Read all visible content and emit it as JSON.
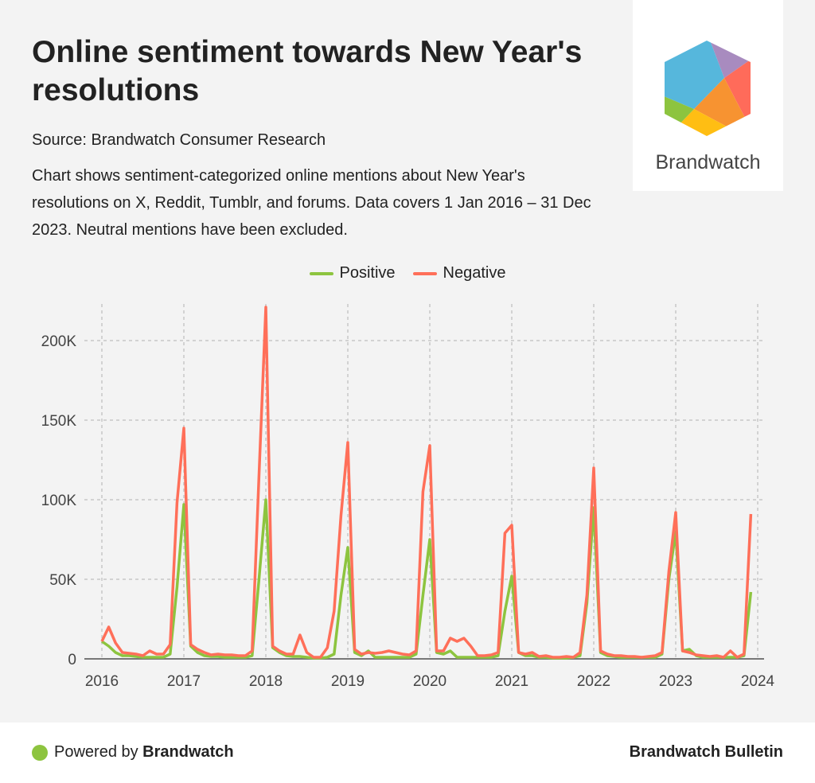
{
  "header": {
    "title": "Online sentiment towards New Year's resolutions",
    "source": "Source: Brandwatch Consumer Research",
    "description": "Chart shows sentiment-categorized online mentions about New Year's resolutions on X, Reddit, Tumblr, and forums. Data covers 1 Jan 2016 – 31 Dec 2023. Neutral mentions have been excluded."
  },
  "logo": {
    "text": "Brandwatch"
  },
  "footer": {
    "powered_prefix": "Powered by ",
    "powered_brand": "Brandwatch",
    "right": "Brandwatch Bulletin"
  },
  "colors": {
    "positive": "#8dc43f",
    "negative": "#ff6f59"
  },
  "chart_data": {
    "type": "line",
    "title": "Online sentiment towards New Year's resolutions",
    "xlabel": "",
    "ylabel": "",
    "x_start": "2016-01",
    "x_interval": "month",
    "xlim": [
      2016,
      2024
    ],
    "ylim": [
      0,
      220000
    ],
    "grid": true,
    "legend_position": "top-center",
    "x_ticks": [
      "2016",
      "2017",
      "2018",
      "2019",
      "2020",
      "2021",
      "2022",
      "2023",
      "2024"
    ],
    "y_ticks": [
      {
        "value": 0,
        "label": "0"
      },
      {
        "value": 50000,
        "label": "50K"
      },
      {
        "value": 100000,
        "label": "100K"
      },
      {
        "value": 150000,
        "label": "150K"
      },
      {
        "value": 200000,
        "label": "200K"
      }
    ],
    "series": [
      {
        "name": "Positive",
        "color": "#8dc43f",
        "values": [
          11000,
          8000,
          4000,
          2000,
          2000,
          1500,
          1000,
          1000,
          1000,
          1000,
          3000,
          45000,
          97000,
          8000,
          4000,
          2000,
          1500,
          1500,
          1000,
          1000,
          1000,
          1000,
          2000,
          50000,
          100000,
          7000,
          4000,
          2000,
          1500,
          1500,
          1000,
          500,
          500,
          1000,
          3000,
          40000,
          70000,
          4000,
          2000,
          5000,
          1000,
          1000,
          1000,
          1000,
          1000,
          1000,
          3000,
          40000,
          75000,
          4000,
          3000,
          5000,
          1000,
          1000,
          1000,
          1000,
          1000,
          1000,
          2000,
          30000,
          52000,
          4000,
          2000,
          2000,
          1000,
          1000,
          500,
          500,
          500,
          1000,
          2000,
          35000,
          95000,
          4000,
          2000,
          1500,
          1000,
          1000,
          1000,
          1000,
          1000,
          1000,
          3000,
          50000,
          80000,
          5000,
          6000,
          2000,
          1000,
          1000,
          1000,
          1000,
          1000,
          1000,
          2000,
          42000
        ]
      },
      {
        "name": "Negative",
        "color": "#ff6f59",
        "values": [
          11000,
          20000,
          10000,
          4000,
          3500,
          3000,
          2000,
          5000,
          3000,
          3000,
          9000,
          98000,
          145000,
          9000,
          6000,
          4000,
          2500,
          3000,
          2500,
          2500,
          2000,
          2000,
          5000,
          115000,
          221000,
          8000,
          5000,
          3000,
          3000,
          15000,
          4000,
          1000,
          1000,
          7000,
          30000,
          90000,
          136000,
          6000,
          3000,
          4000,
          3500,
          4000,
          5000,
          4000,
          3000,
          2500,
          5000,
          105000,
          134000,
          5000,
          5000,
          13000,
          11000,
          13000,
          8000,
          2000,
          2000,
          2500,
          4000,
          79000,
          84000,
          4000,
          3000,
          4000,
          1500,
          2000,
          1000,
          1000,
          1500,
          1000,
          4000,
          40000,
          120000,
          5000,
          3000,
          2000,
          2000,
          1500,
          1500,
          1000,
          1500,
          2000,
          4000,
          55000,
          92000,
          5000,
          4000,
          2500,
          2000,
          1500,
          2000,
          1000,
          5000,
          1000,
          3000,
          91000
        ]
      }
    ]
  }
}
